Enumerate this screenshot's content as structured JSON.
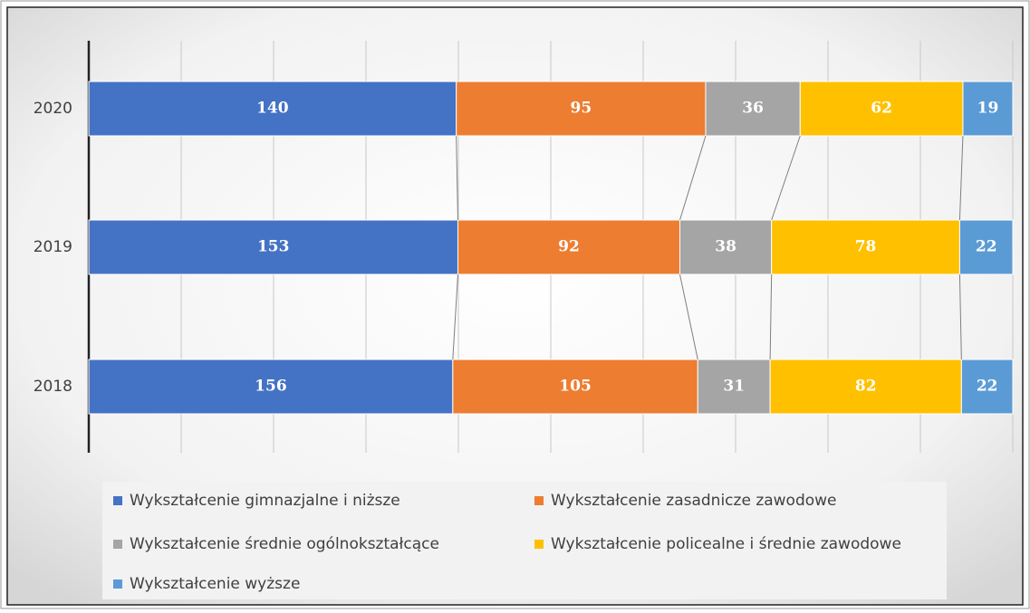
{
  "chart_data": {
    "type": "stacked-percent-bar",
    "categories": [
      "2020",
      "2019",
      "2018"
    ],
    "series": [
      {
        "name": "Wykształcenie gimnazjalne i niższe",
        "color": "#4472c4",
        "values": [
          140,
          153,
          156
        ]
      },
      {
        "name": "Wykształcenie zasadnicze zawodowe",
        "color": "#ed7d31",
        "values": [
          95,
          92,
          105
        ]
      },
      {
        "name": "Wykształcenie średnie ogólnokształcące",
        "color": "#a5a5a5",
        "values": [
          36,
          38,
          31
        ]
      },
      {
        "name": "Wykształcenie policealne i średnie zawodowe",
        "color": "#ffc000",
        "values": [
          62,
          78,
          82
        ]
      },
      {
        "name": "Wykształcenie wyższe",
        "color": "#5b9bd5",
        "values": [
          19,
          22,
          22
        ]
      }
    ],
    "xlim": [
      0,
      100
    ],
    "xticks": [
      0,
      10,
      20,
      30,
      40,
      50,
      60,
      70,
      80,
      90,
      100
    ],
    "grid": true,
    "series_lines": true,
    "legend": "bottom"
  }
}
